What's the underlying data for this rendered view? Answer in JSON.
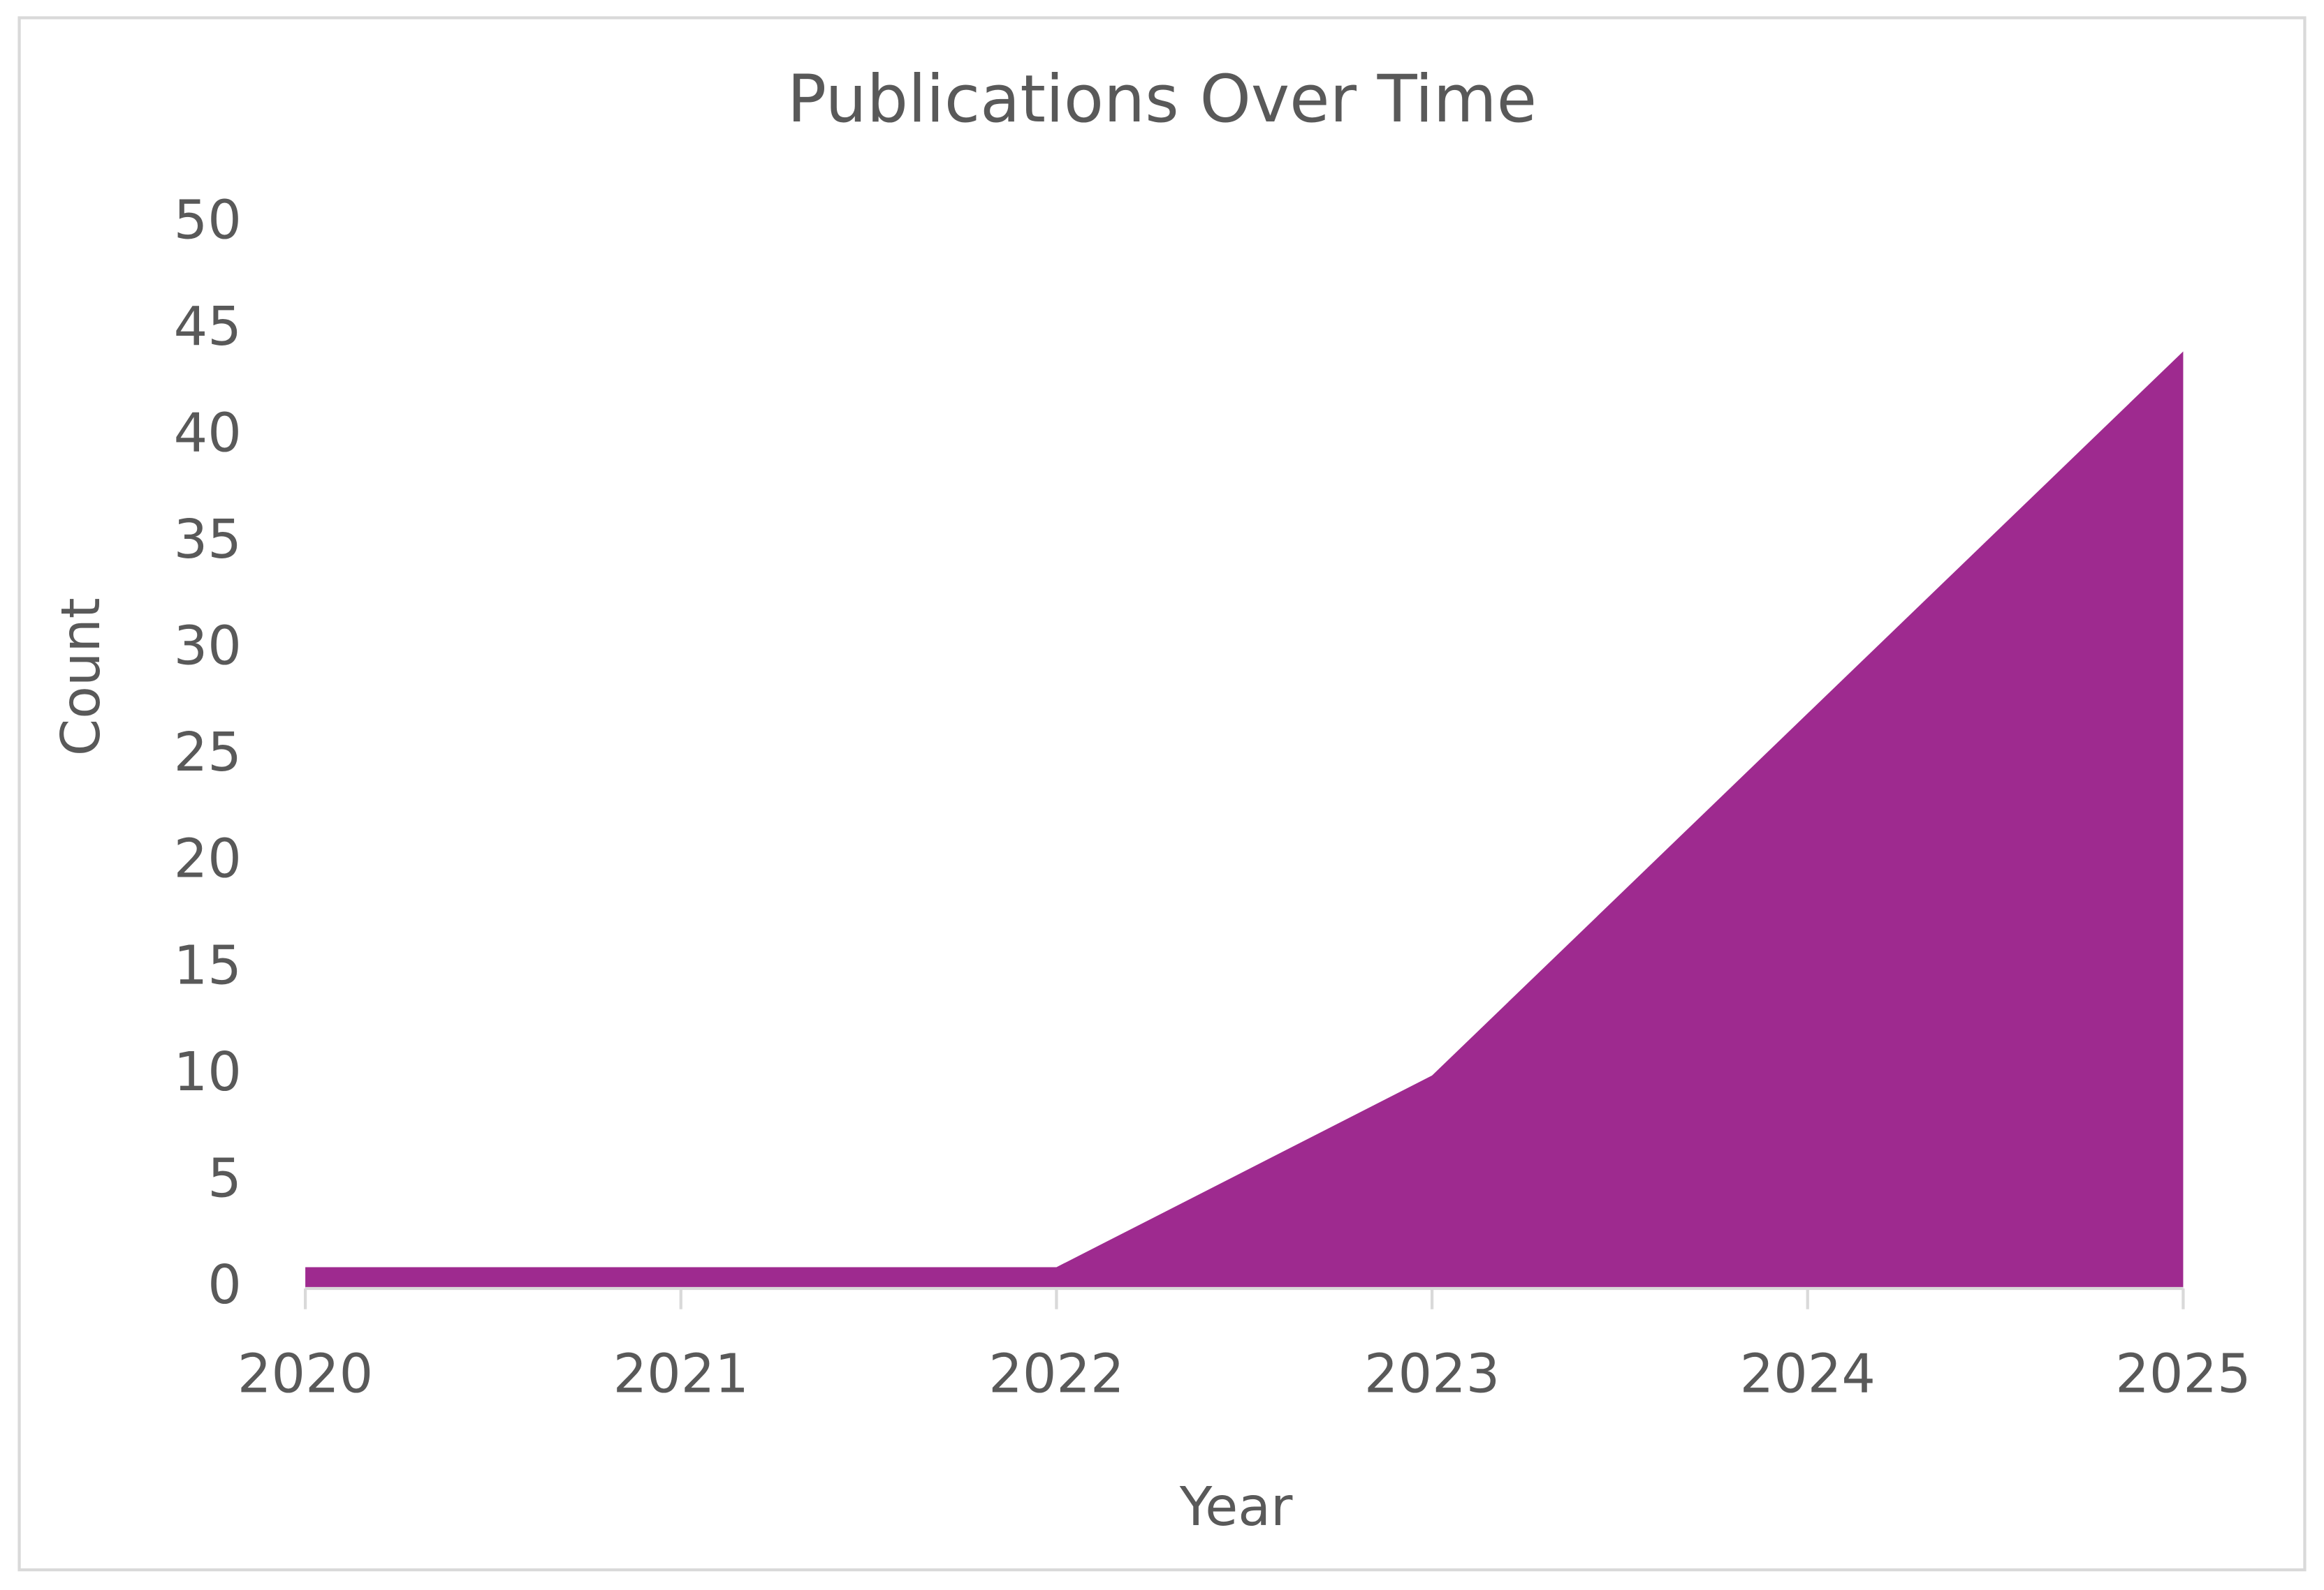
{
  "chart_data": {
    "type": "area",
    "title": "Publications Over Time",
    "x_label": "Year",
    "y_label": "Count",
    "categories": [
      "2020",
      "2021",
      "2022",
      "2023",
      "2024",
      "2025"
    ],
    "values": [
      1,
      1,
      1,
      10,
      27,
      44
    ],
    "color": "#9e2a8f",
    "ylim": [
      0,
      50
    ],
    "yticks": [
      0,
      5,
      10,
      15,
      20,
      25,
      30,
      35,
      40,
      45,
      50
    ],
    "grid": false
  }
}
